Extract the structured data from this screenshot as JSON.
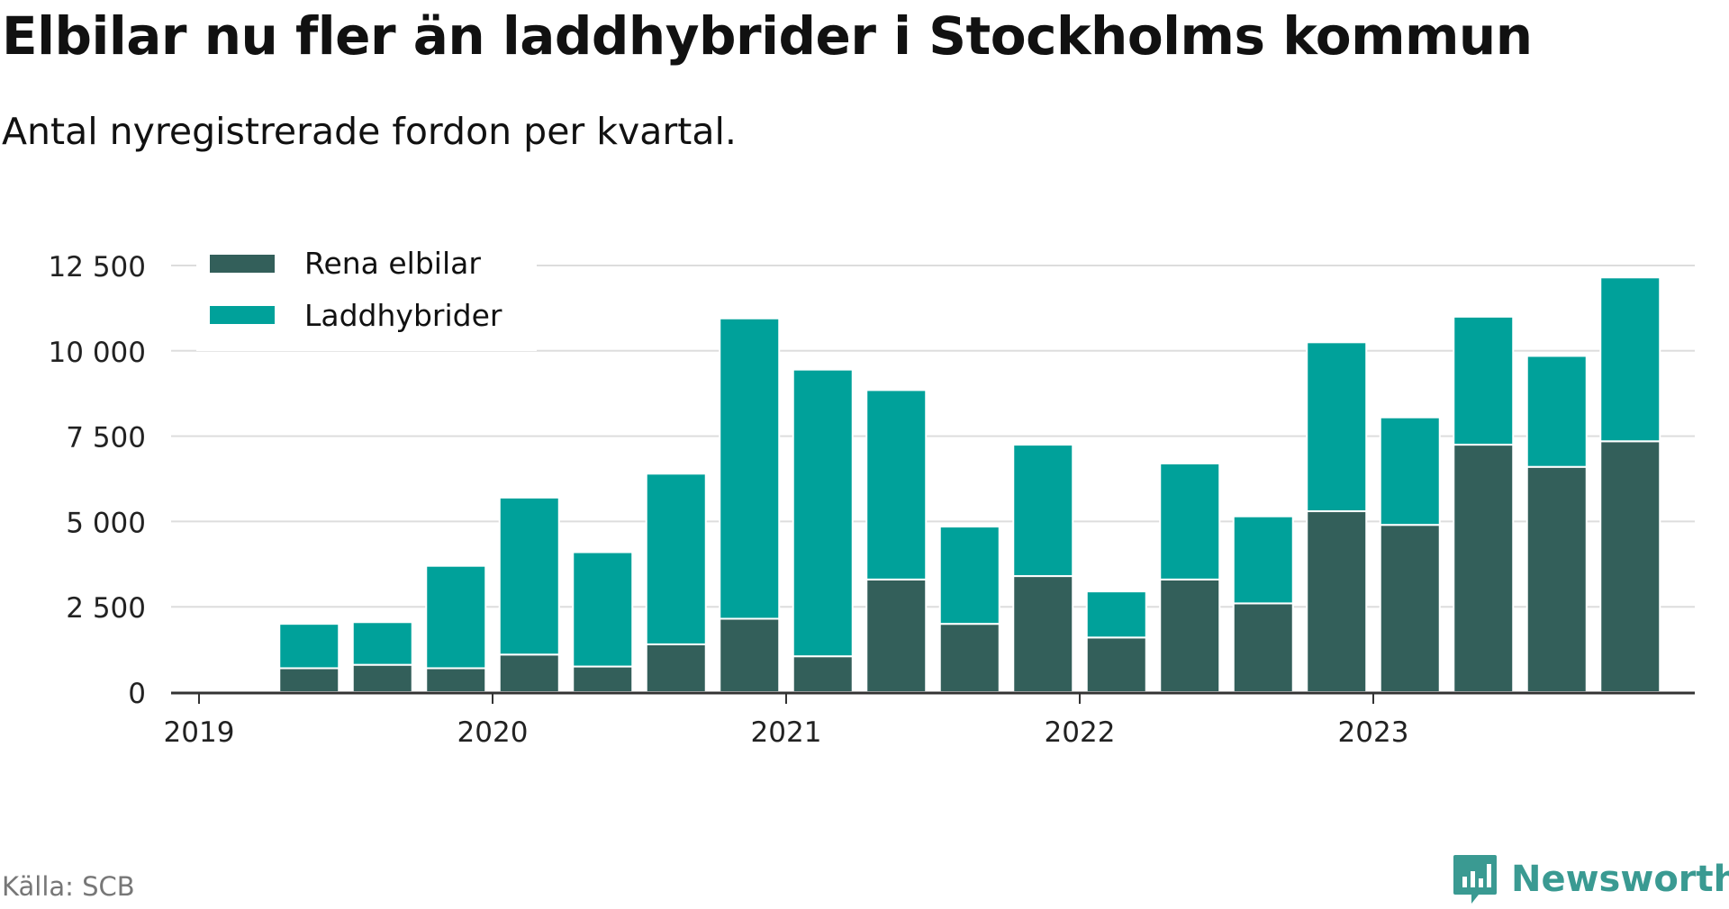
{
  "header": {
    "title": "Elbilar nu fler än laddhybrider i Stockholms kommun",
    "subtitle": "Antal nyregistrerade fordon per kvartal."
  },
  "footer": {
    "source": "Källa: SCB",
    "brand": "Newsworthy"
  },
  "colors": {
    "elbilar": "#335f5a",
    "laddhybrider": "#00a19a",
    "grid": "#dddddd",
    "axis": "#333333",
    "brand": "#3a9a92"
  },
  "chart_data": {
    "type": "bar",
    "stacked": true,
    "categories": [
      "2019 Q2",
      "2019 Q3",
      "2019 Q4",
      "2020 Q1",
      "2020 Q2",
      "2020 Q3",
      "2020 Q4",
      "2021 Q1",
      "2021 Q2",
      "2021 Q3",
      "2021 Q4",
      "2022 Q1",
      "2022 Q2",
      "2022 Q3",
      "2022 Q4",
      "2023 Q1",
      "2023 Q2",
      "2023 Q3",
      "2023 Q4"
    ],
    "series": [
      {
        "name": "Rena elbilar",
        "values": [
          700,
          800,
          700,
          1100,
          750,
          1400,
          2150,
          1050,
          3300,
          2000,
          3400,
          1600,
          3300,
          2600,
          5300,
          4900,
          7250,
          6600,
          7350
        ]
      },
      {
        "name": "Laddhybrider",
        "values": [
          1300,
          1250,
          3000,
          4600,
          3350,
          5000,
          8800,
          8400,
          5550,
          2850,
          3850,
          1350,
          3400,
          2550,
          4950,
          3150,
          3750,
          3250,
          4800
        ]
      }
    ],
    "x_ticks": [
      "2019",
      "2020",
      "2021",
      "2022",
      "2023"
    ],
    "y_ticks": [
      "0",
      "2 500",
      "5 000",
      "7 500",
      "10 000",
      "12 500"
    ],
    "y_tick_values": [
      0,
      2500,
      5000,
      7500,
      10000,
      12500
    ],
    "ylim": [
      0,
      12500
    ],
    "legend": {
      "position": "top-left",
      "labels": [
        "Rena elbilar",
        "Laddhybrider"
      ]
    },
    "grid": true,
    "xlabel": "",
    "ylabel": ""
  }
}
